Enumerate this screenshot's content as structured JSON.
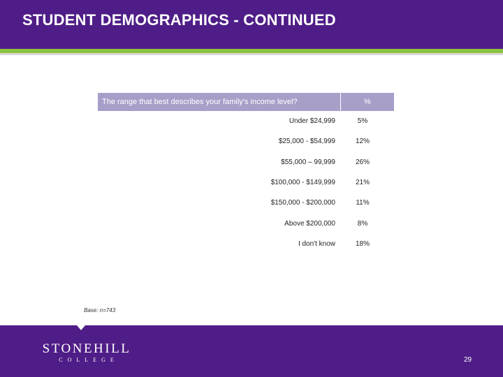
{
  "header": {
    "title": "STUDENT DEMOGRAPHICS - CONTINUED"
  },
  "table": {
    "question": "The range that best describes your family's income level?",
    "percent_header": "%",
    "rows": [
      {
        "label": "Under $24,999",
        "value": "5%"
      },
      {
        "label": "$25,000 - $54,999",
        "value": "12%"
      },
      {
        "label": "$55,000 – 99,999",
        "value": "26%"
      },
      {
        "label": "$100,000 - $149,999",
        "value": "21%"
      },
      {
        "label": "$150,000 - $200,000",
        "value": "11%"
      },
      {
        "label": "Above $200,000",
        "value": "8%"
      },
      {
        "label": "I don't know",
        "value": "18%"
      }
    ]
  },
  "base_note": "Base: n=743",
  "footer": {
    "logo_main": "STONEHILL",
    "logo_sub": "COLLEGE",
    "page_number": "29"
  },
  "colors": {
    "brand_purple": "#4f1d87",
    "accent_green": "#8bc43f",
    "table_header": "#a89fc9"
  }
}
